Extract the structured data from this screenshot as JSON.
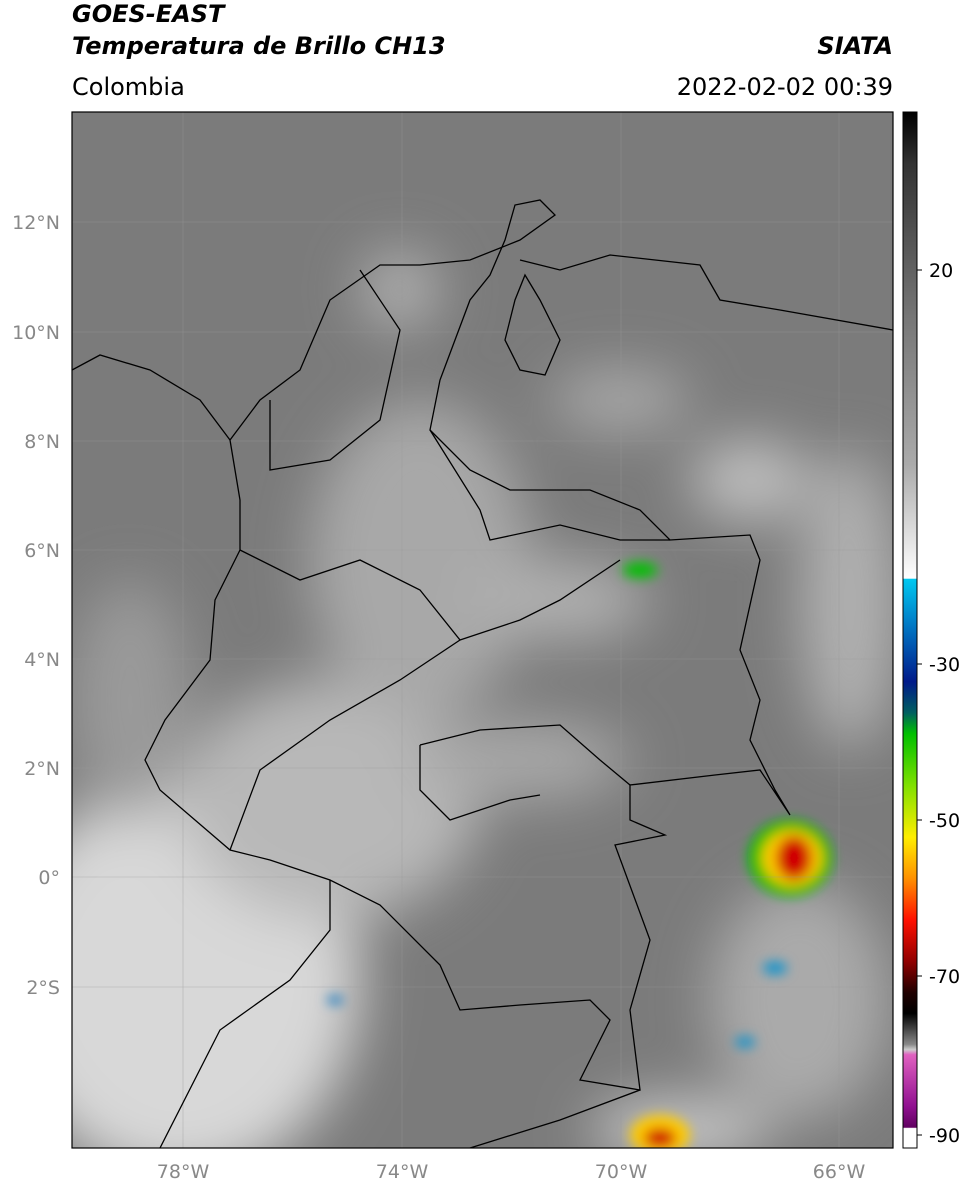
{
  "header": {
    "satellite": "GOES-EAST",
    "product": "Temperatura de Brillo CH13",
    "source": "SIATA",
    "region": "Colombia",
    "datetime": "2022-02-02 00:39"
  },
  "map": {
    "lat_labels": [
      "12°N",
      "10°N",
      "8°N",
      "6°N",
      "4°N",
      "2°N",
      "0°",
      "2°S"
    ],
    "lon_labels": [
      "78°W",
      "74°W",
      "70°W",
      "66°W"
    ]
  },
  "colorbar": {
    "ticks": [
      20,
      -30,
      -50,
      -70,
      -90
    ]
  }
}
